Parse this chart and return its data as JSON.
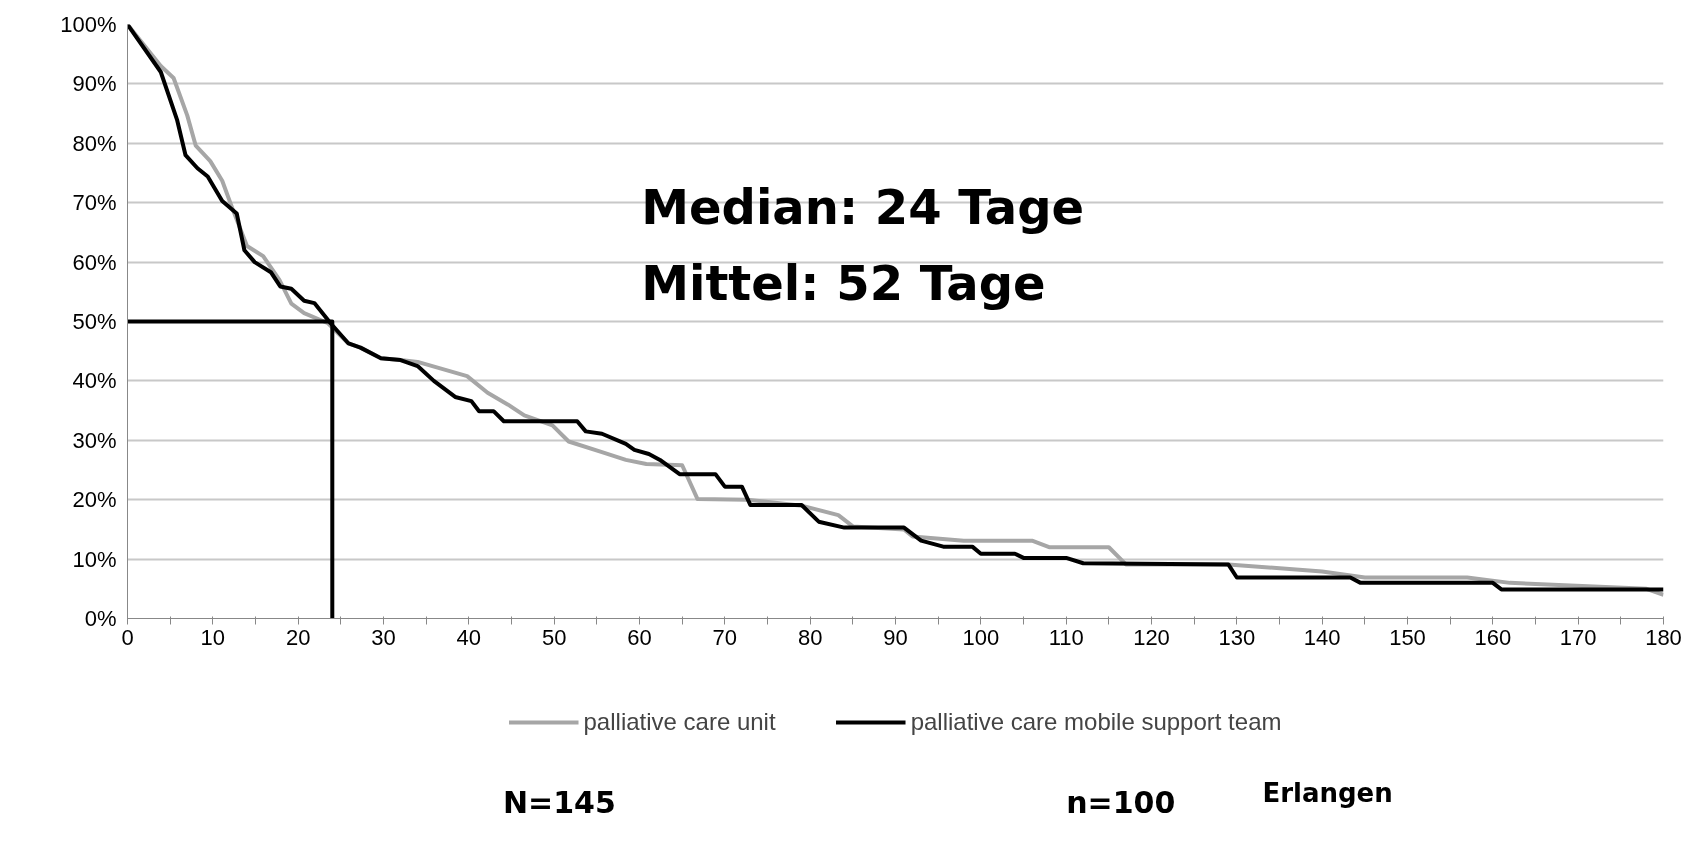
{
  "chart_data": {
    "type": "line",
    "xlim": [
      0,
      180
    ],
    "ylim": [
      0,
      100
    ],
    "xticks": [
      0,
      {
        "value": 5,
        "label": null
      },
      10,
      {
        "value": 15,
        "label": null
      },
      20,
      {
        "value": 25,
        "label": null
      },
      30,
      {
        "value": 35,
        "label": null
      },
      40,
      {
        "value": 45,
        "label": null
      },
      50,
      {
        "value": 55,
        "label": null
      },
      60,
      {
        "value": 65,
        "label": null
      },
      70,
      {
        "value": 75,
        "label": null
      },
      80,
      {
        "value": 85,
        "label": null
      },
      90,
      {
        "value": 95,
        "label": null
      },
      100,
      {
        "value": 105,
        "label": null
      },
      110,
      {
        "value": 115,
        "label": null
      },
      120,
      {
        "value": 125,
        "label": null
      },
      130,
      {
        "value": 135,
        "label": null
      },
      140,
      {
        "value": 145,
        "label": null
      },
      150,
      {
        "value": 155,
        "label": null
      },
      160,
      {
        "value": 165,
        "label": null
      },
      170,
      {
        "value": 175,
        "label": null
      },
      180
    ],
    "yticks": [
      {
        "value": 0,
        "label": "0%"
      },
      {
        "value": 10,
        "label": "10%"
      },
      {
        "value": 20,
        "label": "20%"
      },
      {
        "value": 30,
        "label": "30%"
      },
      {
        "value": 40,
        "label": "40%"
      },
      {
        "value": 50,
        "label": "50%"
      },
      {
        "value": 60,
        "label": "60%"
      },
      {
        "value": 70,
        "label": "70%"
      },
      {
        "value": 80,
        "label": "80%"
      },
      {
        "value": 90,
        "label": "90%"
      },
      {
        "value": 100,
        "label": "100%"
      }
    ],
    "grid": "y",
    "legend": "bottom",
    "line_style": "solid",
    "marker": "none",
    "series": [
      {
        "name": "palliative care unit",
        "color": "#a6a6a6",
        "x": [
          0,
          3.9,
          5.4,
          7,
          8,
          9.7,
          11.1,
          12.3,
          14,
          15.9,
          17.8,
          19.2,
          20.7,
          23.5,
          25.9,
          27.3,
          29.7,
          32,
          34,
          39.8,
          42.2,
          44.6,
          46.5,
          49.8,
          51.7,
          55.6,
          58.4,
          60.8,
          65,
          66.8,
          72.6,
          79,
          83.3,
          85,
          91,
          92,
          98,
          106,
          108,
          115,
          117,
          129,
          140,
          145,
          157,
          162,
          178,
          180
        ],
        "values": [
          100,
          93,
          91,
          84.7,
          79.6,
          77,
          73.7,
          69,
          62.7,
          61,
          57,
          53,
          51.4,
          49.7,
          46.3,
          45.6,
          43.8,
          43.5,
          43.2,
          40.8,
          38,
          36,
          34.2,
          32.5,
          29.8,
          28,
          26.7,
          26,
          25.8,
          20.1,
          20,
          19,
          17.4,
          15.5,
          15,
          13.8,
          13.1,
          13.1,
          12,
          12,
          9.1,
          9.1,
          7.9,
          6.9,
          6.9,
          6,
          5,
          4
        ]
      },
      {
        "name": "palliative care mobile support team",
        "color": "#000000",
        "x": [
          0,
          3.9,
          5.8,
          6.8,
          8.2,
          9.4,
          11.1,
          12.8,
          13.7,
          14.9,
          16.8,
          17.9,
          19.2,
          20.7,
          21.9,
          23.8,
          25.9,
          27.3,
          29.7,
          32,
          34,
          35.9,
          38.4,
          40.3,
          41.2,
          42.9,
          44.1,
          52.7,
          53.7,
          55.6,
          58.4,
          59.4,
          61.1,
          62.4,
          64.7,
          68.9,
          70,
          72,
          73,
          79,
          81,
          84,
          91,
          93,
          95.6,
          99,
          100,
          104,
          105,
          110,
          112,
          129,
          130,
          143.3,
          144.5,
          160,
          161,
          180
        ],
        "values": [
          100,
          92,
          84,
          78,
          75.8,
          74.4,
          70.3,
          68.2,
          62,
          60,
          58.3,
          55.9,
          55.5,
          53.5,
          53.1,
          49.7,
          46.3,
          45.6,
          43.8,
          43.5,
          42.5,
          40,
          37.3,
          36.6,
          34.9,
          34.9,
          33.2,
          33.2,
          31.5,
          31.1,
          29.4,
          28.4,
          27.7,
          26.7,
          24.3,
          24.3,
          22.2,
          22.2,
          19.1,
          19.1,
          16.3,
          15.3,
          15.3,
          13.1,
          12.1,
          12.1,
          10.9,
          10.9,
          10.2,
          10.2,
          9.3,
          9.1,
          6.9,
          6.9,
          6,
          6,
          4.9,
          4.9
        ]
      },
      {
        "color": "#000000",
        "x": [
          0,
          24,
          24
        ],
        "values": [
          50,
          50,
          0
        ]
      }
    ],
    "annotations": [
      "Median: 24 Tage",
      "Mittel:   52 Tage",
      "N=145",
      "n=100",
      "Erlangen"
    ]
  }
}
